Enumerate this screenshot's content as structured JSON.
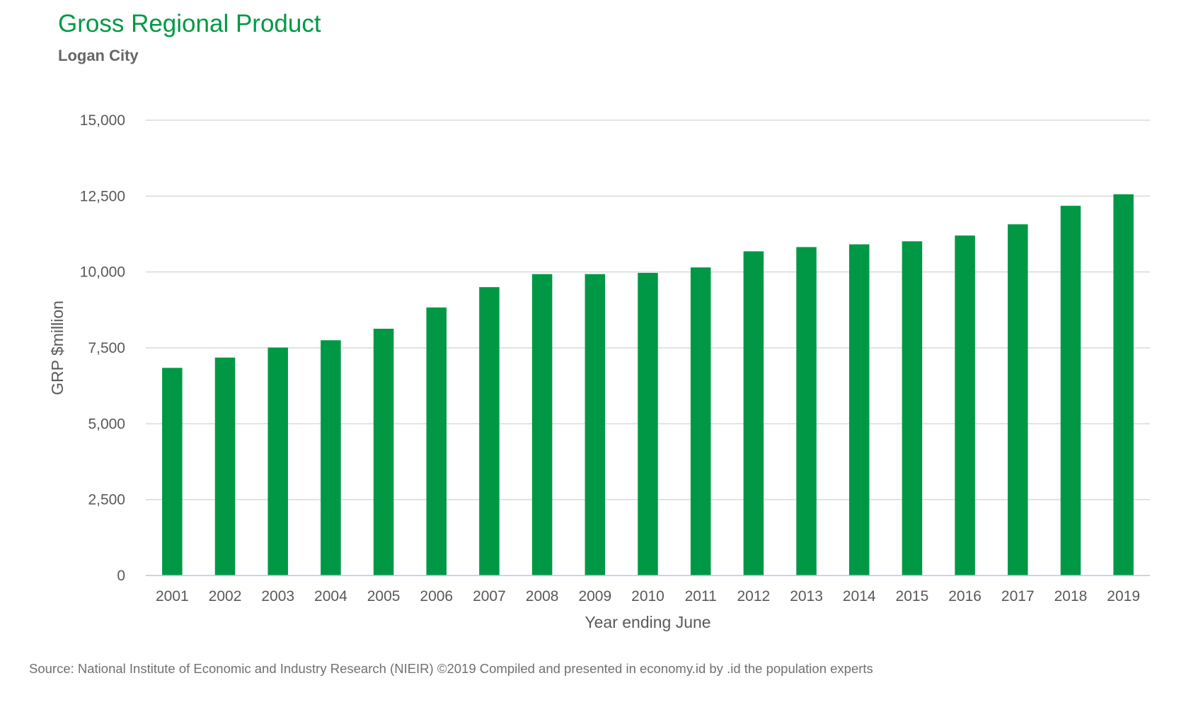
{
  "chart_data": {
    "type": "bar",
    "title": "Gross Regional Product",
    "subtitle": "Logan City",
    "xlabel": "Year ending June",
    "ylabel": "GRP $million",
    "categories": [
      "2001",
      "2002",
      "2003",
      "2004",
      "2005",
      "2006",
      "2007",
      "2008",
      "2009",
      "2010",
      "2011",
      "2012",
      "2013",
      "2014",
      "2015",
      "2016",
      "2017",
      "2018",
      "2019"
    ],
    "series": [
      {
        "values": [
          6840,
          7180,
          7510,
          7750,
          8130,
          8830,
          9500,
          9930,
          9930,
          9970,
          10150,
          10680,
          10820,
          10910,
          11010,
          11200,
          11570,
          12180,
          12560
        ]
      }
    ],
    "ylim": [
      0,
      15000
    ],
    "yticks": [
      0,
      2500,
      5000,
      7500,
      10000,
      12500,
      15000
    ],
    "ytick_labels": [
      "0",
      "2,500",
      "5,000",
      "7,500",
      "10,000",
      "12,500",
      "15,000"
    ],
    "grid": true,
    "colors": {
      "bar": "#009845",
      "title": "#009845",
      "grid": "#d9d9d9",
      "axis": "#b4c7e7",
      "text": "#595959"
    }
  },
  "source": "Source: National Institute of Economic and Industry Research (NIEIR) ©2019 Compiled and presented in economy.id by .id the population experts"
}
